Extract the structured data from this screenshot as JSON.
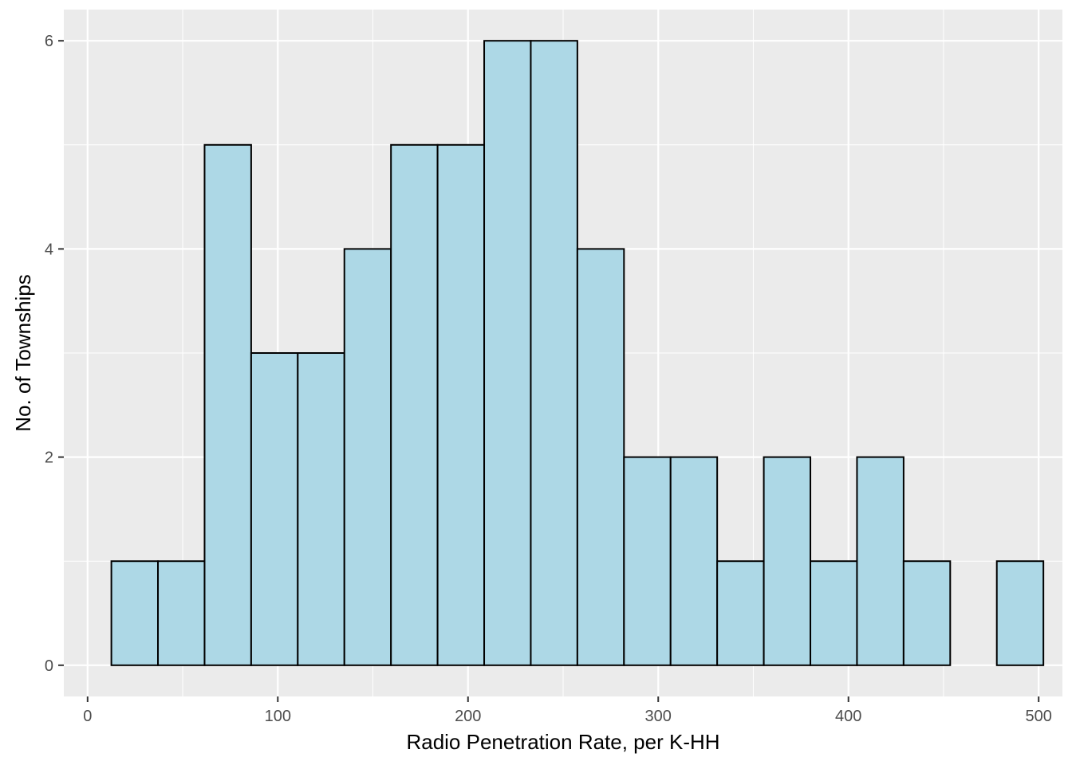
{
  "chart_data": {
    "type": "bar",
    "title": "",
    "xlabel": "Radio Penetration Rate, per K-HH",
    "ylabel": "No. of Townships",
    "xlim": [
      -12.5,
      512.5
    ],
    "ylim": [
      -0.3,
      6.3
    ],
    "x_ticks": [
      0,
      100,
      200,
      300,
      400,
      500
    ],
    "y_ticks": [
      0,
      2,
      4,
      6
    ],
    "x_tick_labels": [
      "0",
      "100",
      "200",
      "300",
      "400",
      "500"
    ],
    "y_tick_labels": [
      "0",
      "2",
      "4",
      "6"
    ],
    "grid": true,
    "bins": [
      {
        "x0": 12.5,
        "x1": 37,
        "count": 1
      },
      {
        "x0": 37,
        "x1": 61.5,
        "count": 1
      },
      {
        "x0": 61.5,
        "x1": 86,
        "count": 5
      },
      {
        "x0": 86,
        "x1": 110.5,
        "count": 3
      },
      {
        "x0": 110.5,
        "x1": 135,
        "count": 3
      },
      {
        "x0": 135,
        "x1": 159.5,
        "count": 4
      },
      {
        "x0": 159.5,
        "x1": 184,
        "count": 5
      },
      {
        "x0": 184,
        "x1": 208.5,
        "count": 5
      },
      {
        "x0": 208.5,
        "x1": 233,
        "count": 6
      },
      {
        "x0": 233,
        "x1": 257.5,
        "count": 6
      },
      {
        "x0": 257.5,
        "x1": 282,
        "count": 4
      },
      {
        "x0": 282,
        "x1": 306.5,
        "count": 2
      },
      {
        "x0": 306.5,
        "x1": 331,
        "count": 2
      },
      {
        "x0": 331,
        "x1": 355.5,
        "count": 1
      },
      {
        "x0": 355.5,
        "x1": 380,
        "count": 2
      },
      {
        "x0": 380,
        "x1": 404.5,
        "count": 1
      },
      {
        "x0": 404.5,
        "x1": 429,
        "count": 2
      },
      {
        "x0": 429,
        "x1": 453.5,
        "count": 1
      },
      {
        "x0": 453.5,
        "x1": 478,
        "count": 0
      },
      {
        "x0": 478,
        "x1": 502.5,
        "count": 1
      }
    ],
    "colors": {
      "panel_background": "#ebebeb",
      "grid_line": "#ffffff",
      "bar_fill": "#add8e6",
      "bar_outline": "#000000",
      "tick_label": "#4d4d4d",
      "axis_title": "#000000"
    }
  }
}
